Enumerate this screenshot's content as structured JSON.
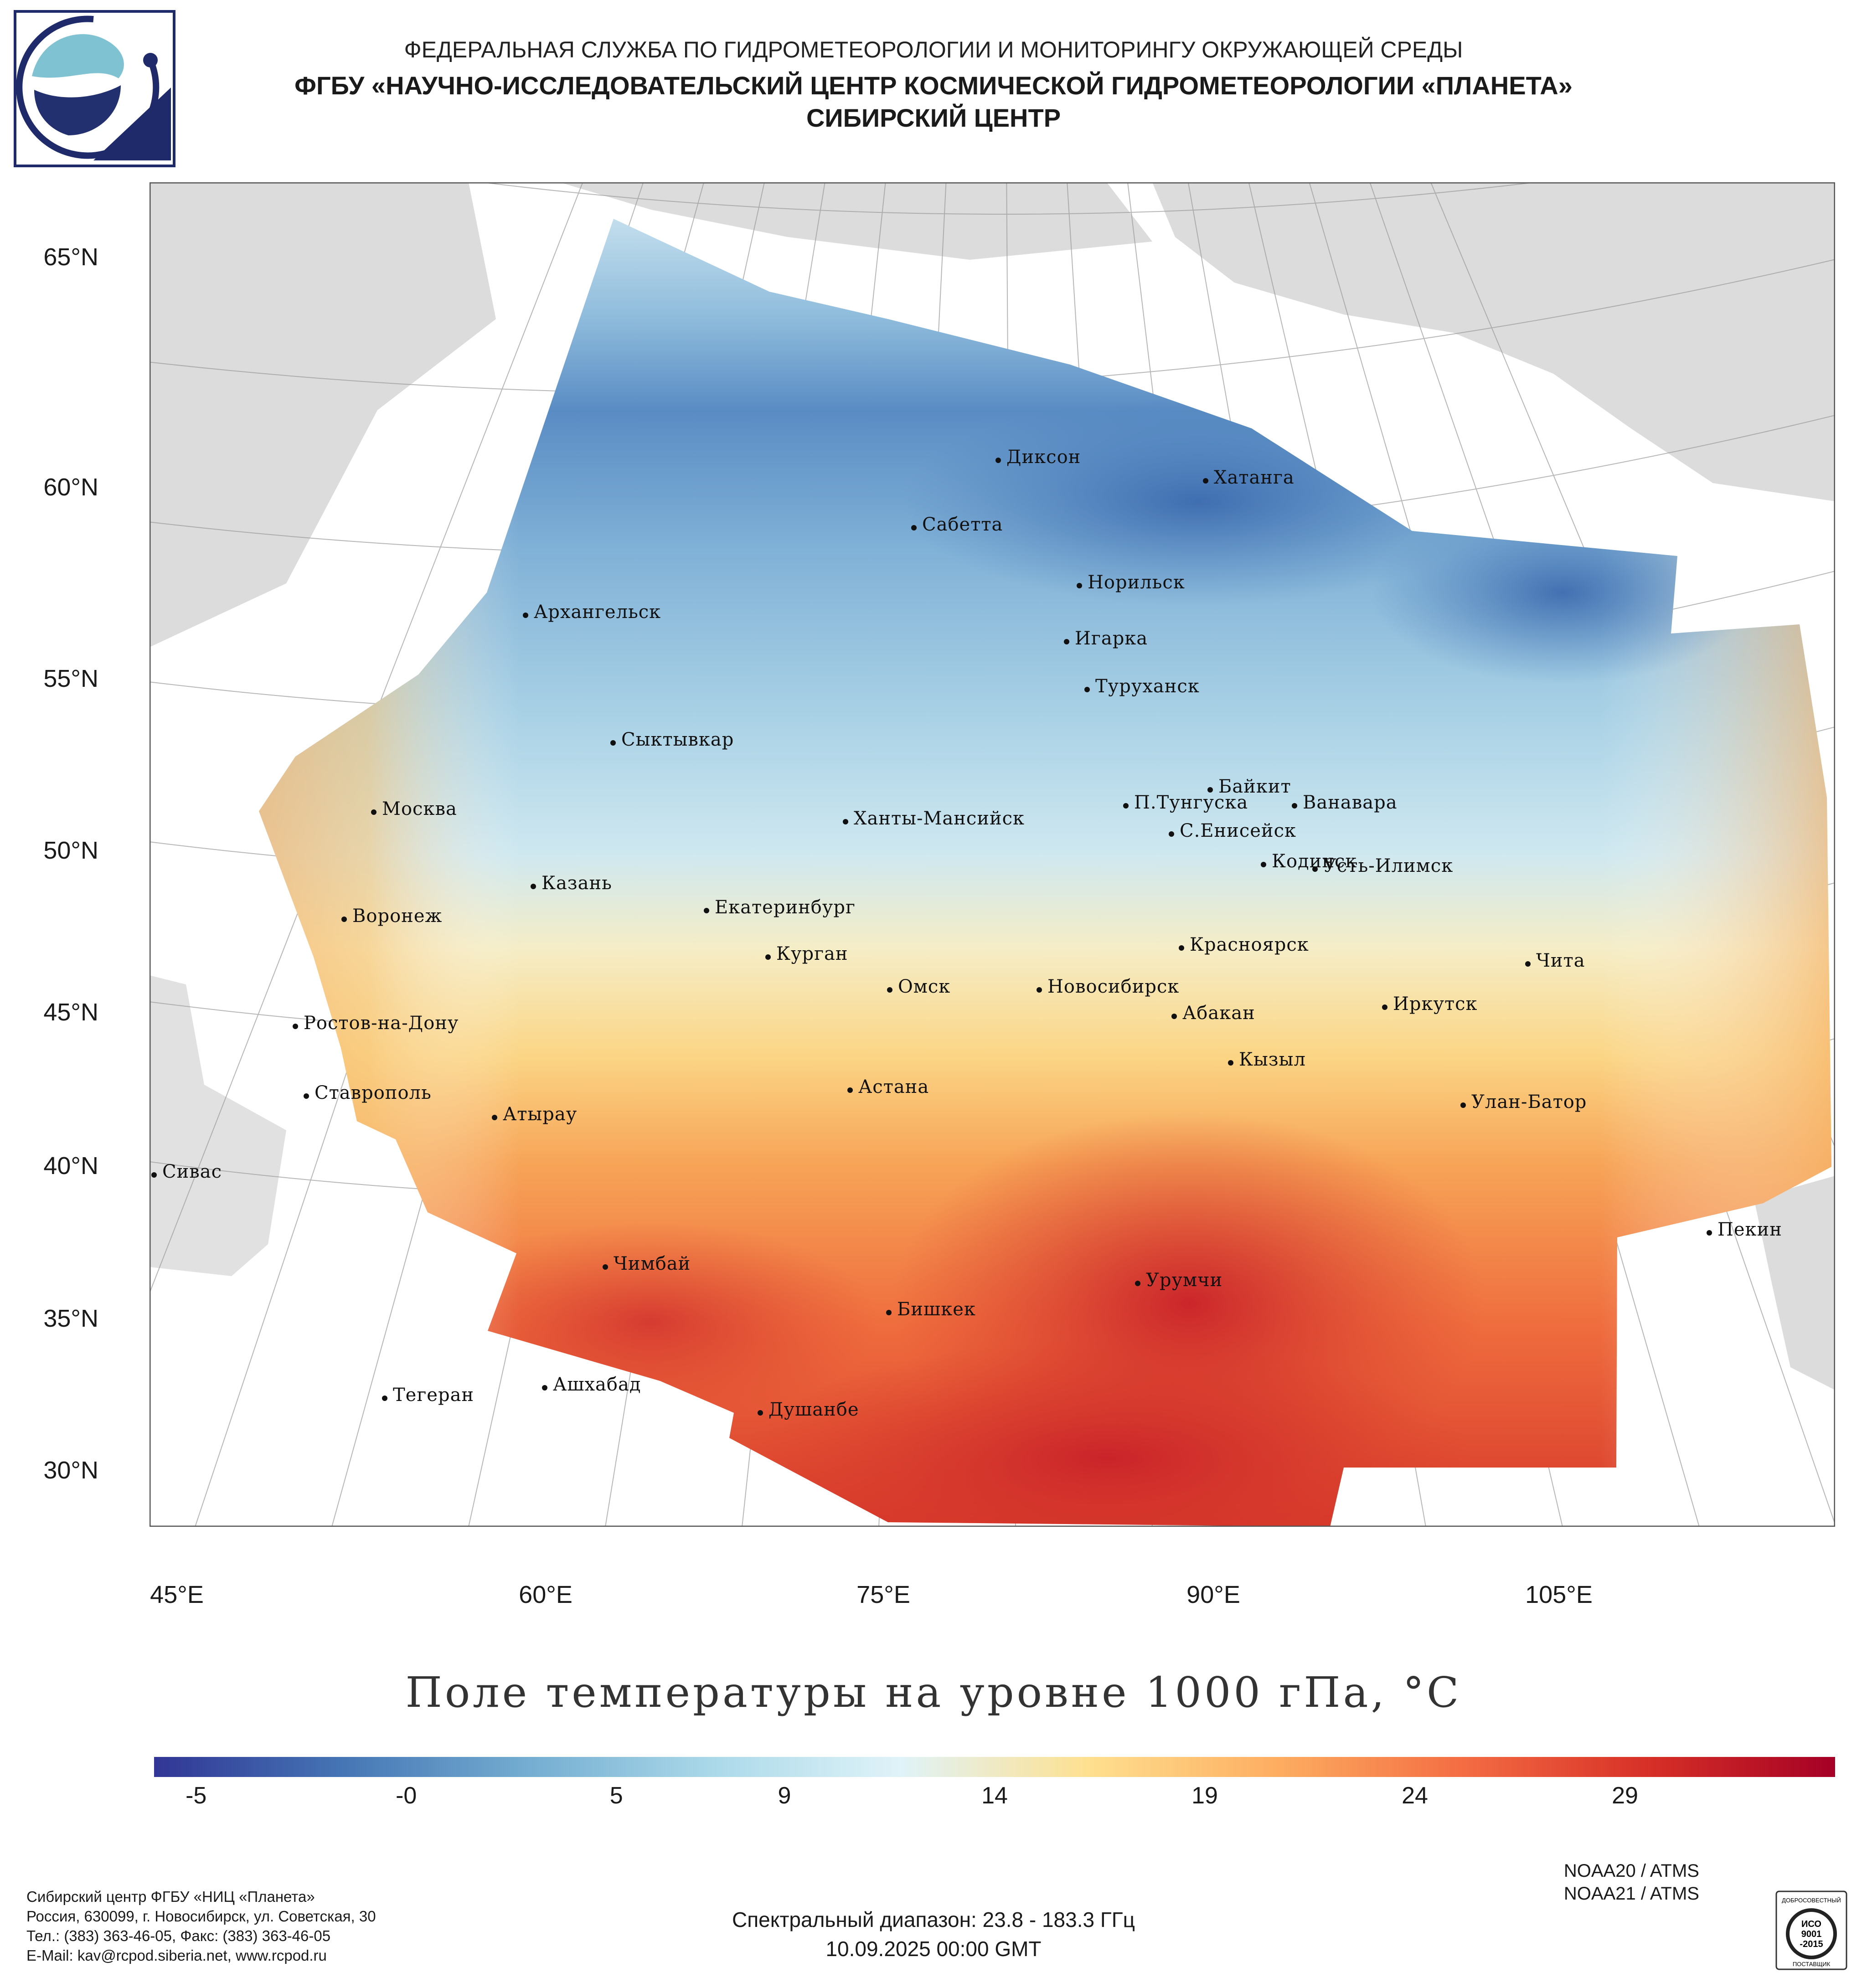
{
  "header": {
    "agency": "ФЕДЕРАЛЬНАЯ СЛУЖБА ПО ГИДРОМЕТЕОРОЛОГИИ И МОНИТОРИНГУ ОКРУЖАЮЩЕЙ СРЕДЫ",
    "center": "ФГБУ «НАУЧНО-ИССЛЕДОВАТЕЛЬСКИЙ ЦЕНТР КОСМИЧЕСКОЙ ГИДРОМЕТЕОРОЛОГИИ «ПЛАНЕТА»",
    "branch": "СИБИРСКИЙ ЦЕНТР"
  },
  "map": {
    "lat_labels": [
      "65°N",
      "60°N",
      "55°N",
      "50°N",
      "45°N",
      "40°N",
      "35°N",
      "30°N"
    ],
    "lon_labels": [
      "45°E",
      "60°E",
      "75°E",
      "90°E",
      "105°E"
    ],
    "cities": [
      {
        "name": "Диксон"
      },
      {
        "name": "Хатанга"
      },
      {
        "name": "Сабетта"
      },
      {
        "name": "Норильск"
      },
      {
        "name": "Архангельск"
      },
      {
        "name": "Игарка"
      },
      {
        "name": "Туруханск"
      },
      {
        "name": "Сыктывкар"
      },
      {
        "name": "Москва"
      },
      {
        "name": "Байкит"
      },
      {
        "name": "П.Тунгуска"
      },
      {
        "name": "Ванавара"
      },
      {
        "name": "Ханты-Мансийск"
      },
      {
        "name": "С.Енисейск"
      },
      {
        "name": "Казань"
      },
      {
        "name": "Кодинск"
      },
      {
        "name": "Усть-Илимск"
      },
      {
        "name": "Воронеж"
      },
      {
        "name": "Екатеринбург"
      },
      {
        "name": "Красноярск"
      },
      {
        "name": "Курган"
      },
      {
        "name": "Чита"
      },
      {
        "name": "Омск"
      },
      {
        "name": "Новосибирск"
      },
      {
        "name": "Иркутск"
      },
      {
        "name": "Ростов-на-Дону"
      },
      {
        "name": "Абакан"
      },
      {
        "name": "Кызыл"
      },
      {
        "name": "Ставрополь"
      },
      {
        "name": "Астана"
      },
      {
        "name": "Улан-Батор"
      },
      {
        "name": "Атырау"
      },
      {
        "name": "Сивас"
      },
      {
        "name": "Пекин"
      },
      {
        "name": "Чимбай"
      },
      {
        "name": "Урумчи"
      },
      {
        "name": "Бишкек"
      },
      {
        "name": "Ашхабад"
      },
      {
        "name": "Тегеран"
      },
      {
        "name": "Душанбе"
      }
    ]
  },
  "title": "Поле температуры на уровне 1000 гПа, °C",
  "colorbar": {
    "min": -6,
    "max": 34,
    "ticks": [
      -5,
      0,
      5,
      9,
      14,
      19,
      24,
      29
    ],
    "tick_labels": [
      "-5",
      "-0",
      "5",
      "9",
      "14",
      "19",
      "24",
      "29"
    ],
    "colors": [
      "#313695",
      "#4575b4",
      "#74add1",
      "#abd9e9",
      "#e0f3f8",
      "#fee090",
      "#fdae61",
      "#f46d43",
      "#d73027",
      "#a50026"
    ]
  },
  "footer": {
    "org": "Сибирский центр ФГБУ «НИЦ «Планета»",
    "address": "Россия, 630099, г. Новосибирск, ул. Советская, 30",
    "phone": "Тел.: (383) 363-46-05, Факс: (383) 363-46-05",
    "email": "E-Mail: kav@rcpod.siberia.net, www.rcpod.ru",
    "sat1": "NOAA20 / ATMS",
    "sat2": "NOAA21 / ATMS",
    "spectral": "Спектральный диапазон: 23.8 - 183.3 ГГц",
    "datetime": "10.09.2025 00:00 GMT",
    "iso": [
      "ДОБРОСОВЕСТНЫЙ",
      "ИСО",
      "9001",
      "-2015",
      "ПОСТАВЩИК"
    ]
  }
}
